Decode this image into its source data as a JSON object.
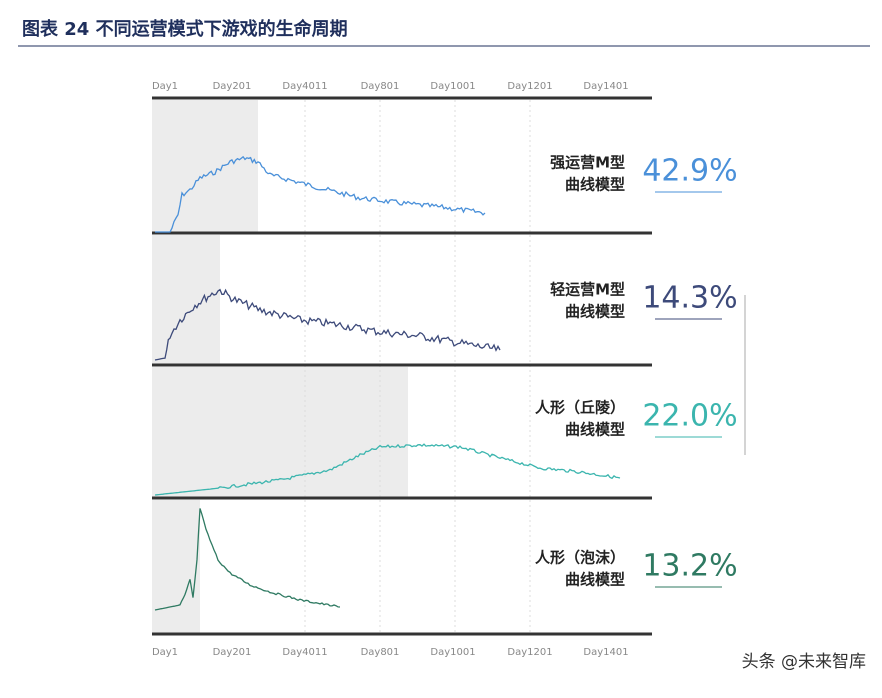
{
  "header": {
    "title": "图表 24 不同运营模式下游戏的生命周期"
  },
  "axis": {
    "labels": [
      "Day1",
      "Day201",
      "Day4011",
      "Day801",
      "Day1001",
      "Day1201",
      "Day1401"
    ]
  },
  "panels": [
    {
      "lines": [
        "强运营M型",
        "曲线模型"
      ],
      "share": "42.9%"
    },
    {
      "lines": [
        "轻运营M型",
        "曲线模型"
      ],
      "share": "14.3%"
    },
    {
      "lines": [
        "人形（丘陵）",
        "曲线模型"
      ],
      "share": "22.0%"
    },
    {
      "lines": [
        "人形（泡沫）",
        "曲线模型"
      ],
      "share": "13.2%"
    }
  ],
  "watermark": "头条 @未来智库"
}
